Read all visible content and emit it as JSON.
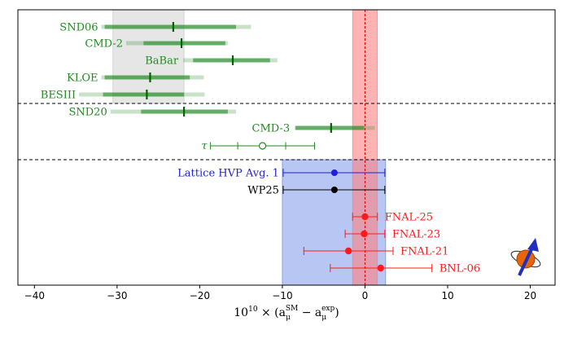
{
  "chart_data": {
    "type": "scatter",
    "title": "",
    "xlabel_parts": {
      "prefix": "10",
      "exp": "10",
      "mid": " × (a",
      "sub": "μ",
      "sup_sm": "SM",
      "minus": " − a",
      "sup_exp": "exp",
      "close": ")"
    },
    "xlim": [
      -42,
      23
    ],
    "xticks": [
      -40,
      -30,
      -20,
      -10,
      0,
      10,
      20
    ],
    "xtick_labels": [
      "−40",
      "−30",
      "−20",
      "−10",
      "0",
      "10",
      "20"
    ],
    "grid": false,
    "colors": {
      "green": "#228b22",
      "blue": "#1f1fdd",
      "red": "#ff1a1a",
      "black": "#000000",
      "band_red": "#ff8080",
      "band_blue": "#6f8ee8",
      "band_gray": "#c8c8c8"
    },
    "bands": [
      {
        "name": "gray-band",
        "x0": -30.5,
        "x1": -21.9
      },
      {
        "name": "red-band",
        "x0": -1.5,
        "x1": 1.5,
        "center": 0
      },
      {
        "name": "blue-band",
        "x0": -10,
        "x1": 2.5
      }
    ],
    "data_driven": [
      {
        "label": "SND06",
        "center": -23.2,
        "inner": [
          -31.5,
          -15.6
        ],
        "outer": [
          -31.9,
          -13.8
        ]
      },
      {
        "label": "CMD-2",
        "center": -22.2,
        "inner": [
          -26.8,
          -16.9
        ],
        "outer": [
          -28.9,
          -16.6
        ]
      },
      {
        "label": "BaBar",
        "center": -16.0,
        "inner": [
          -20.8,
          -11.5
        ],
        "outer": [
          -22.0,
          -10.6
        ]
      },
      {
        "label": "KLOE",
        "center": -26.0,
        "inner": [
          -31.5,
          -21.2
        ],
        "outer": [
          -31.9,
          -19.5
        ]
      },
      {
        "label": "BESIII",
        "center": -26.4,
        "inner": [
          -31.7,
          -21.9
        ],
        "outer": [
          -34.6,
          -19.4
        ]
      },
      {
        "label": "SND20",
        "center": -21.9,
        "inner": [
          -27.1,
          -16.6
        ],
        "outer": [
          -30.8,
          -15.6
        ]
      },
      {
        "label": "CMD-3",
        "center": -4.1,
        "inner": [
          -8.4,
          -0.1
        ],
        "outer": [
          -8.5,
          1.2
        ]
      }
    ],
    "tau": {
      "label": "τ",
      "center": -12.4,
      "inner": [
        -15.4,
        -9.6
      ],
      "outer": [
        -18.7,
        -6.1
      ]
    },
    "lattice": [
      {
        "label": "Lattice HVP Avg. 1",
        "center": -3.7,
        "range": [
          -9.9,
          2.4
        ],
        "color": "blue"
      },
      {
        "label": "WP25",
        "center": -3.7,
        "range": [
          -9.9,
          2.4
        ],
        "color": "black"
      }
    ],
    "experiments": [
      {
        "label": "FNAL-25",
        "center": 0.0,
        "range": [
          -1.5,
          1.5
        ]
      },
      {
        "label": "FNAL-23",
        "center": -0.1,
        "range": [
          -2.4,
          2.4
        ]
      },
      {
        "label": "FNAL-21",
        "center": -2.0,
        "range": [
          -7.4,
          3.4
        ]
      },
      {
        "label": "BNL-06",
        "center": 1.9,
        "range": [
          -4.2,
          8.1
        ]
      }
    ]
  }
}
